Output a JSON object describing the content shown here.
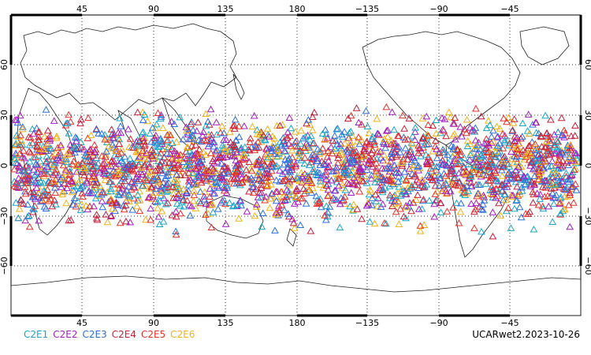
{
  "map": {
    "top_lon_labels": [
      "45",
      "90",
      "135",
      "180",
      "−135",
      "−90",
      "−45"
    ],
    "bottom_lon_labels": [
      "45",
      "90",
      "135",
      "180",
      "−135",
      "−90",
      "−45"
    ],
    "left_lat_labels": [
      "60",
      "30",
      "0",
      "−30",
      "−60"
    ],
    "right_lat_labels": [
      "60",
      "30",
      "0",
      "−30",
      "−60"
    ],
    "grid": "dotted",
    "marker": "open-triangle",
    "lat_coverage": [
      -45,
      45
    ]
  },
  "legend": [
    {
      "label": "C2E1",
      "color": "#1aa7c8"
    },
    {
      "label": "C2E2",
      "color": "#a21fc2"
    },
    {
      "label": "C2E3",
      "color": "#2f6fe0"
    },
    {
      "label": "C2E4",
      "color": "#c4213a"
    },
    {
      "label": "C2E5",
      "color": "#e5322b"
    },
    {
      "label": "C2E6",
      "color": "#f3b21a"
    }
  ],
  "credit": "UCARwet2.2023-10-26"
}
